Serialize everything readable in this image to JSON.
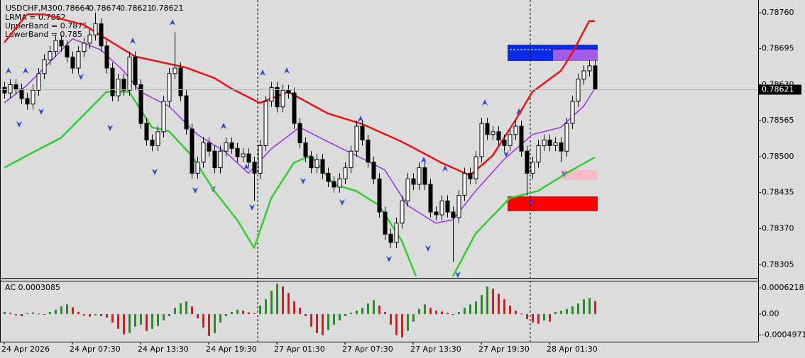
{
  "chart_data": [
    {
      "type": "candlestick",
      "symbol": "USDCHF,M30",
      "open": [
        0.78625,
        0.78615,
        0.7863,
        0.78622,
        0.78605,
        0.78595,
        0.7862,
        0.7865,
        0.78675,
        0.7869,
        0.7871,
        0.787,
        0.7868,
        0.7866,
        0.7869,
        0.78705,
        0.7872,
        0.7874,
        0.787,
        0.7866,
        0.7861,
        0.7864,
        0.7862,
        0.7868,
        0.7863,
        0.7856,
        0.7853,
        0.7852,
        0.78545,
        0.786,
        0.7865,
        0.7866,
        0.7861,
        0.7855,
        0.7847,
        0.7849,
        0.78525,
        0.7851,
        0.7848,
        0.7851,
        0.78525,
        0.78515,
        0.785,
        0.78505,
        0.7849,
        0.7847,
        0.7852,
        0.786,
        0.78625,
        0.7859,
        0.7862,
        0.78615,
        0.7856,
        0.78525,
        0.785,
        0.7848,
        0.78495,
        0.7847,
        0.78455,
        0.78445,
        0.7846,
        0.7848,
        0.7851,
        0.78555,
        0.7853,
        0.7849,
        0.7846,
        0.784,
        0.7836,
        0.78345,
        0.7838,
        0.7842,
        0.7846,
        0.7845,
        0.7848,
        0.7845,
        0.784,
        0.78395,
        0.7842,
        0.784,
        0.7839,
        0.7843,
        0.7847,
        0.7846,
        0.785,
        0.7856,
        0.7854,
        0.78545,
        0.7853,
        0.7852,
        0.7854,
        0.78555,
        0.7851,
        0.7847,
        0.7849,
        0.7852,
        0.7853,
        0.7852,
        0.78525,
        0.7851,
        0.7856,
        0.786,
        0.7864,
        0.78655,
        0.78664
      ],
      "high": [
        0.78635,
        0.7864,
        0.7864,
        0.78632,
        0.78615,
        0.7863,
        0.7866,
        0.78685,
        0.787,
        0.7872,
        0.7872,
        0.7871,
        0.7869,
        0.787,
        0.78715,
        0.7873,
        0.7876,
        0.7875,
        0.7871,
        0.7867,
        0.7865,
        0.7865,
        0.7869,
        0.7869,
        0.7864,
        0.7857,
        0.7854,
        0.78555,
        0.7861,
        0.7866,
        0.78725,
        0.7867,
        0.7862,
        0.7856,
        0.785,
        0.78535,
        0.78535,
        0.7852,
        0.7852,
        0.78535,
        0.78535,
        0.78525,
        0.78515,
        0.78515,
        0.785,
        0.7853,
        0.7861,
        0.78635,
        0.78635,
        0.7863,
        0.7863,
        0.78625,
        0.7857,
        0.78535,
        0.7851,
        0.78505,
        0.78505,
        0.7848,
        0.78465,
        0.7847,
        0.7849,
        0.7852,
        0.78565,
        0.78565,
        0.7854,
        0.785,
        0.7847,
        0.7841,
        0.7837,
        0.7839,
        0.7843,
        0.7847,
        0.7847,
        0.7849,
        0.7849,
        0.7846,
        0.7841,
        0.7843,
        0.7843,
        0.7841,
        0.7844,
        0.7848,
        0.7848,
        0.7851,
        0.7857,
        0.7857,
        0.78555,
        0.78555,
        0.7854,
        0.7855,
        0.78565,
        0.78565,
        0.7852,
        0.785,
        0.7853,
        0.7854,
        0.7854,
        0.78535,
        0.78535,
        0.7857,
        0.7861,
        0.7865,
        0.78665,
        0.78674,
        0.78674
      ],
      "low": [
        0.78605,
        0.78605,
        0.78612,
        0.78595,
        0.78585,
        0.78585,
        0.7861,
        0.7864,
        0.78665,
        0.7868,
        0.7869,
        0.7867,
        0.7865,
        0.7865,
        0.7868,
        0.78695,
        0.7871,
        0.7869,
        0.7865,
        0.786,
        0.786,
        0.7861,
        0.7861,
        0.7862,
        0.7855,
        0.7852,
        0.7851,
        0.7851,
        0.78535,
        0.7859,
        0.7864,
        0.786,
        0.7854,
        0.7846,
        0.7846,
        0.7848,
        0.785,
        0.7847,
        0.7847,
        0.785,
        0.78505,
        0.7849,
        0.7849,
        0.7848,
        0.7842,
        0.7846,
        0.7851,
        0.7859,
        0.7858,
        0.7858,
        0.78605,
        0.7855,
        0.78515,
        0.7849,
        0.7847,
        0.7847,
        0.7846,
        0.78445,
        0.78435,
        0.78435,
        0.7845,
        0.7847,
        0.785,
        0.7852,
        0.7848,
        0.7845,
        0.7839,
        0.7835,
        0.78335,
        0.78335,
        0.7837,
        0.7841,
        0.7844,
        0.7844,
        0.7844,
        0.7839,
        0.78385,
        0.78385,
        0.7839,
        0.7831,
        0.7838,
        0.7842,
        0.7845,
        0.7845,
        0.7849,
        0.7853,
        0.7853,
        0.7852,
        0.7851,
        0.7851,
        0.7853,
        0.785,
        0.7843,
        0.7846,
        0.7848,
        0.7851,
        0.7851,
        0.7851,
        0.7849,
        0.785,
        0.7855,
        0.7859,
        0.7863,
        0.78645,
        0.78621
      ],
      "close": [
        0.78615,
        0.7863,
        0.78622,
        0.78605,
        0.78595,
        0.7862,
        0.7865,
        0.78675,
        0.7869,
        0.7871,
        0.787,
        0.7868,
        0.7866,
        0.7869,
        0.78705,
        0.7872,
        0.7874,
        0.787,
        0.7866,
        0.7861,
        0.7864,
        0.7862,
        0.7868,
        0.7863,
        0.7856,
        0.7853,
        0.7852,
        0.78545,
        0.786,
        0.7865,
        0.7866,
        0.7861,
        0.7855,
        0.7847,
        0.7849,
        0.78525,
        0.7851,
        0.7848,
        0.7851,
        0.78525,
        0.78515,
        0.785,
        0.78505,
        0.7849,
        0.7847,
        0.7852,
        0.786,
        0.78625,
        0.7859,
        0.7862,
        0.78615,
        0.7856,
        0.78525,
        0.785,
        0.7848,
        0.78495,
        0.7847,
        0.78455,
        0.78445,
        0.7846,
        0.7848,
        0.7851,
        0.78555,
        0.7853,
        0.7849,
        0.7846,
        0.784,
        0.7836,
        0.78345,
        0.7838,
        0.7842,
        0.7846,
        0.7845,
        0.7848,
        0.7845,
        0.784,
        0.78395,
        0.7842,
        0.784,
        0.7839,
        0.7843,
        0.7847,
        0.7846,
        0.785,
        0.7856,
        0.7854,
        0.78545,
        0.7853,
        0.7852,
        0.7854,
        0.78555,
        0.7851,
        0.7847,
        0.7849,
        0.7852,
        0.7853,
        0.7852,
        0.78525,
        0.7851,
        0.7856,
        0.786,
        0.7864,
        0.78655,
        0.78664,
        0.78621
      ],
      "up_color": "#ffffff",
      "down_color": "#000000",
      "series": [
        {
          "label": "LRMA = 0.7862",
          "color": "#9b30e8",
          "x": [
            0,
            4,
            9,
            12,
            17,
            21,
            24,
            29,
            34,
            39,
            43,
            47,
            52,
            57,
            62,
            67,
            71,
            76,
            79,
            83,
            88,
            93,
            98,
            102,
            104
          ],
          "values": [
            0.78597,
            0.78629,
            0.78681,
            0.78713,
            0.78693,
            0.78655,
            0.78617,
            0.78591,
            0.7854,
            0.78508,
            0.7847,
            0.78514,
            0.78553,
            0.78527,
            0.78502,
            0.78476,
            0.78412,
            0.7838,
            0.78386,
            0.78438,
            0.78495,
            0.7854,
            0.78553,
            0.78591,
            0.78623
          ]
        },
        {
          "label": "UpperBand = 0.7875",
          "color": "#ee1111",
          "x": [
            0,
            4,
            7,
            14,
            23,
            32,
            37,
            40,
            45,
            50,
            57,
            63,
            70,
            77,
            82,
            86,
            90,
            93,
            98,
            100,
            103,
            104
          ],
          "values": [
            0.78706,
            0.78757,
            0.78757,
            0.78738,
            0.78681,
            0.78661,
            0.78642,
            0.78623,
            0.78597,
            0.78617,
            0.78578,
            0.78559,
            0.78527,
            0.78489,
            0.78466,
            0.78502,
            0.78566,
            0.78617,
            0.78655,
            0.78687,
            0.78745,
            0.78745
          ]
        },
        {
          "label": "LowerBand = 0.785",
          "color": "#33cc33",
          "x": [
            0,
            4,
            10,
            18,
            22,
            26,
            29,
            33,
            37,
            41,
            44,
            47,
            51,
            54,
            58,
            62,
            66,
            70,
            72.5,
            76,
            79,
            83,
            89,
            94,
            99,
            104
          ],
          "values": [
            0.7848,
            0.78502,
            0.78534,
            0.78617,
            0.78617,
            0.78553,
            0.78546,
            0.78502,
            0.78438,
            0.78386,
            0.78335,
            0.78425,
            0.78489,
            0.78502,
            0.7845,
            0.78438,
            0.78412,
            0.78348,
            0.78284,
            null,
            0.78284,
            0.78361,
            0.78425,
            0.78438,
            0.7847,
            0.78499
          ]
        }
      ],
      "ylim": [
        0.78281,
        0.78783
      ],
      "yticks": [
        0.78305,
        {
          "value": 0.7837,
          "label": "0.78370"
        },
        0.78435,
        {
          "value": 0.785,
          "label": "0.78500"
        },
        0.78565,
        {
          "value": 0.7863,
          "label": "0.78630"
        },
        0.78695,
        {
          "value": 0.7876,
          "label": "0.78760"
        }
      ]
    },
    {
      "type": "bar",
      "title": "AC 0.0003085",
      "values": [
        5e-05,
        3e-05,
        -3e-05,
        -5e-05,
        2e-05,
        4e-05,
        1e-05,
        -2e-05,
        5e-05,
        0.0001,
        0.00018,
        0.00023,
        0.00016,
        5e-05,
        -4e-05,
        -6e-05,
        -3e-05,
        -5e-05,
        -8e-05,
        -0.0002,
        -0.00035,
        -0.00048,
        -0.00045,
        -0.0003,
        -0.00025,
        -0.0004,
        -0.00035,
        -0.00028,
        -0.00015,
        -5e-05,
        0.00015,
        0.00026,
        0.0003,
        0.00018,
        -0.0001,
        -0.00032,
        -0.00052,
        -0.00045,
        -0.0002,
        -5e-05,
        5e-05,
        0.0001,
        8e-05,
        4e-05,
        2e-05,
        0.0002,
        0.00035,
        0.00055,
        0.00072,
        0.00065,
        0.0005,
        0.0003,
        0.00015,
        -5e-05,
        -0.0003,
        -0.00045,
        -0.0005,
        -0.00038,
        -0.00025,
        -0.00015,
        -5e-05,
        3e-05,
        8e-05,
        0.00015,
        0.00025,
        0.00033,
        0.0002,
        5e-05,
        -0.00025,
        -0.0005,
        -0.00055,
        -0.0004,
        -0.00018,
        0.00012,
        0.00023,
        0.00015,
        8e-05,
        6e-05,
        3e-05,
        -2e-05,
        5e-05,
        0.00015,
        0.00023,
        0.0003,
        0.00045,
        0.00065,
        0.0006,
        0.00048,
        0.00035,
        0.0002,
        8e-05,
        1e-05,
        -0.00012,
        -0.0002,
        -0.00023,
        -0.00015,
        -0.00018,
        5e-05,
        8e-05,
        0.00012,
        0.00018,
        0.00025,
        0.00035,
        0.00038,
        0.0003085
      ],
      "up_color": "#129a12",
      "down_color": "#ee1111",
      "ylim": [
        -0.000655,
        0.000773
      ],
      "yticks": [
        -0.0004971,
        {
          "value": 0,
          "label": "0.00"
        },
        0.0006218
      ],
      "xticks": [
        {
          "value": 0,
          "label": "24 Apr 2026"
        },
        {
          "value": 12,
          "label": "24 Apr 07:30"
        },
        {
          "value": 24,
          "label": "24 Apr 13:30"
        },
        {
          "value": 36,
          "label": "24 Apr 19:30"
        },
        {
          "value": 48,
          "label": "27 Apr 01:30"
        },
        {
          "value": 60,
          "label": "27 Apr 07:30"
        },
        {
          "value": 72,
          "label": "27 Apr 13:30"
        },
        {
          "value": 84,
          "label": "27 Apr 19:30"
        },
        {
          "value": 96,
          "label": "28 Apr 01:30"
        }
      ]
    }
  ]
}
